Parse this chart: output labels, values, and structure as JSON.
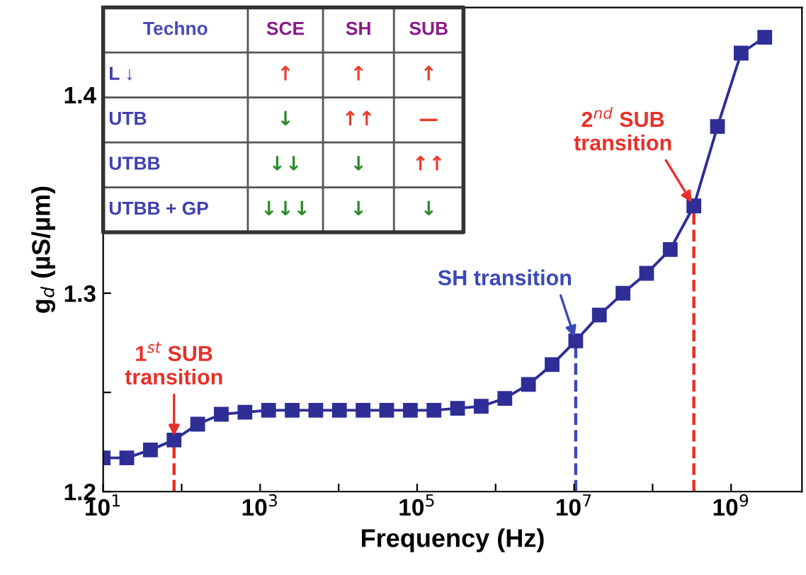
{
  "chart_data": [
    {
      "type": "line",
      "xlabel": "Frequency (Hz)",
      "ylabel": "g$_{d}$ (µS/µm)",
      "log": "x",
      "marker": "square",
      "line_style": "solid",
      "grid": false,
      "legend": false,
      "x": [
        10,
        20,
        40,
        80,
        160,
        320,
        640,
        1280,
        2560,
        5120,
        10240,
        20480,
        40960,
        81920,
        163840,
        327680,
        655360,
        1310720,
        2621440,
        5242880,
        10485760,
        20971520,
        41943040,
        83886080,
        167772160,
        335544320,
        671088640,
        1342177280,
        2684354560
      ],
      "series": [
        {
          "color": "#2e2e96",
          "values": [
            1.217,
            1.217,
            1.221,
            1.226,
            1.234,
            1.239,
            1.24,
            1.241,
            1.241,
            1.241,
            1.241,
            1.241,
            1.241,
            1.241,
            1.241,
            1.242,
            1.243,
            1.247,
            1.254,
            1.264,
            1.276,
            1.289,
            1.3,
            1.31,
            1.322,
            1.344,
            1.384,
            1.421,
            1.429
          ]
        }
      ],
      "xlim": [
        10,
        8000000000
      ],
      "ylim": [
        1.2,
        1.444
      ],
      "xticks": [
        {
          "value": 10,
          "label": "10$^{1}$"
        },
        {
          "value": 100,
          "label": null
        },
        {
          "value": 1000,
          "label": "10$^{3}$"
        },
        {
          "value": 10000,
          "label": null
        },
        {
          "value": 100000,
          "label": "10$^{5}$"
        },
        {
          "value": 1000000,
          "label": null
        },
        {
          "value": 10000000,
          "label": "10$^{7}$"
        },
        {
          "value": 100000000,
          "label": null
        },
        {
          "value": 1000000000,
          "label": "10$^{9}$"
        }
      ],
      "yticks": [
        1.2,
        {
          "value": 1.25,
          "label": null
        },
        1.3,
        {
          "value": 1.35,
          "label": null
        },
        1.4
      ],
      "ref_lines": [
        {
          "axis": "x",
          "value": 80,
          "label": "1$^{st}$ SUB\ntransition",
          "color": "#e8302a",
          "line_style": "dashed"
        },
        {
          "axis": "x",
          "value": 10485760,
          "label": "SH transition",
          "color": "#3a48b8",
          "line_style": "dashed"
        },
        {
          "axis": "x",
          "value": 335544320,
          "label": "2$^{nd}$ SUB\ntransition",
          "color": "#e8302a",
          "line_style": "dashed"
        }
      ]
    },
    {
      "type": "other",
      "ylabel": "Techno",
      "categories": [
        "SCE",
        "SH",
        "SUB"
      ],
      "y_categories": [
        "L ↓",
        "UTB",
        "UTBB",
        "UTBB + GP"
      ],
      "cell_labels": [
        [
          "↑",
          "↑",
          "↑"
        ],
        [
          "↓",
          "↑↑",
          "—"
        ],
        [
          "↓↓",
          "↓",
          "↑↑"
        ],
        [
          "↓↓↓",
          "↓",
          "↓"
        ]
      ],
      "colors": [
        [
          "#e8402a",
          "#e8402a",
          "#e8402a"
        ],
        [
          "#2a8a2a",
          "#e8402a",
          "#e8402a"
        ],
        [
          "#2a8a2a",
          "#2a8a2a",
          "#e8402a"
        ],
        [
          "#2a8a2a",
          "#2a8a2a",
          "#2a8a2a"
        ]
      ]
    }
  ]
}
